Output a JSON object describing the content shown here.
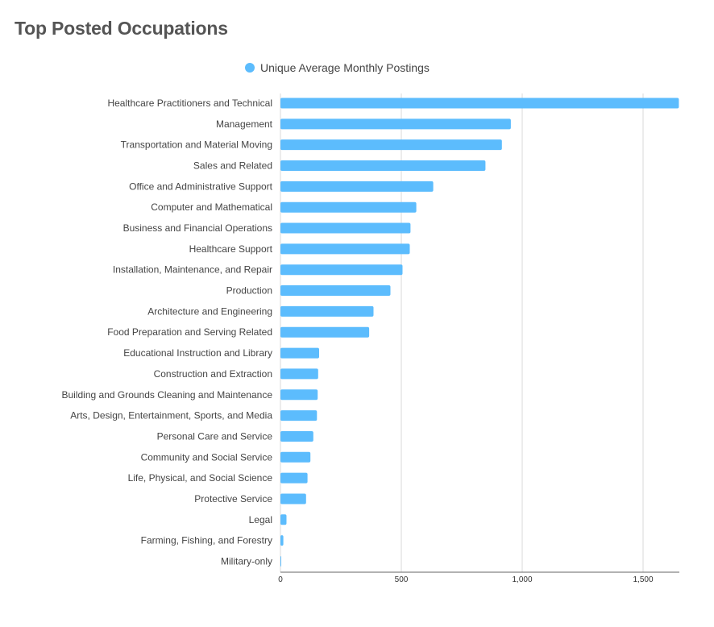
{
  "page_title": "Top Posted Occupations",
  "colors": {
    "bar": "#5cbcfd",
    "grid": "#d9d9d9",
    "axis": "#666666"
  },
  "chart_data": {
    "type": "bar",
    "orientation": "horizontal",
    "legend": {
      "placement": "top-center"
    },
    "grid": true,
    "xlim": [
      0,
      1650
    ],
    "x_ticks": [
      0,
      500,
      1000,
      1500
    ],
    "x_tick_labels": [
      "0",
      "500",
      "1,000",
      "1,500"
    ],
    "categories": [
      "Healthcare Practitioners and Technical",
      "Management",
      "Transportation and Material Moving",
      "Sales and Related",
      "Office and Administrative Support",
      "Computer and Mathematical",
      "Business and Financial Operations",
      "Healthcare Support",
      "Installation, Maintenance, and Repair",
      "Production",
      "Architecture and Engineering",
      "Food Preparation and Serving Related",
      "Educational Instruction and Library",
      "Construction and Extraction",
      "Building and Grounds Cleaning and Maintenance",
      "Arts, Design, Entertainment, Sports, and Media",
      "Personal Care and Service",
      "Community and Social Service",
      "Life, Physical, and Social Science",
      "Protective Service",
      "Legal",
      "Farming, Fishing, and Forestry",
      "Military-only"
    ],
    "series": [
      {
        "name": "Unique Average Monthly Postings",
        "values": [
          1648,
          953,
          916,
          848,
          632,
          562,
          538,
          535,
          505,
          455,
          385,
          367,
          160,
          156,
          154,
          151,
          136,
          124,
          112,
          106,
          25,
          12,
          2
        ]
      }
    ]
  }
}
